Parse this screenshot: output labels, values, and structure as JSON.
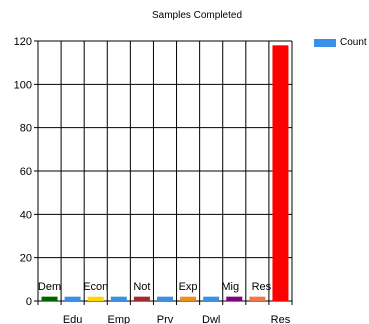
{
  "chart_data": {
    "type": "bar",
    "title": "Samples Completed",
    "categories": [
      "Dem",
      "Edu",
      "Econ",
      "Emp",
      "Not",
      "Prv",
      "Exp",
      "Dwl",
      "Mig",
      "Res",
      "Res"
    ],
    "series": [
      {
        "name": "Count",
        "values": [
          2,
          2,
          2,
          2,
          2,
          2,
          2,
          2,
          2,
          2,
          118
        ],
        "colors": [
          "#006400",
          "#3C8FE6",
          "#FFD700",
          "#3C8FE6",
          "#A52A2A",
          "#3C8FE6",
          "#F08C1E",
          "#3C8FE6",
          "#800080",
          "#F0784B",
          "#FF0000"
        ]
      }
    ],
    "label_rows": [
      "top",
      "bottom",
      "top",
      "bottom",
      "top",
      "bottom",
      "top",
      "bottom",
      "top",
      "top",
      "bottom"
    ],
    "ylim": [
      0,
      120
    ],
    "yticks": [
      0,
      20,
      40,
      60,
      80,
      100,
      120
    ],
    "grid": true,
    "legend_position": "top-right",
    "legend_color": "#3C8FE6"
  }
}
